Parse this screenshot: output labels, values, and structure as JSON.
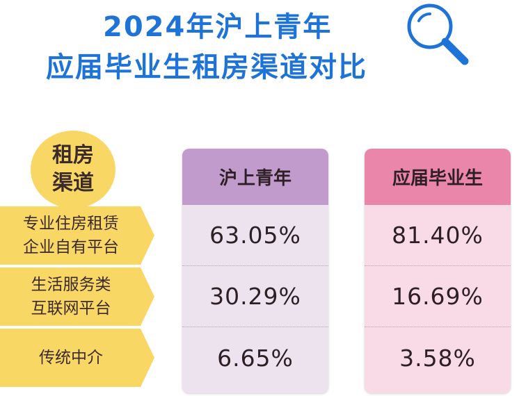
{
  "title": {
    "line1": "2024年沪上青年",
    "line2": "应届毕业生租房渠道对比"
  },
  "colors": {
    "title": "#1e73d8",
    "label_bg": "#f9d765",
    "series1_header": "#c09bcc",
    "series1_body": "#ece3ee",
    "series2_header": "#e986aa",
    "series2_body": "#f8dbe6"
  },
  "icons": [
    "magnifier-icon"
  ],
  "chart_data": {
    "type": "table",
    "title": "2024年沪上青年应届毕业生租房渠道对比",
    "row_header": [
      "租房",
      "渠道"
    ],
    "categories": [
      [
        "专业住房租赁",
        "企业自有平台"
      ],
      [
        "生活服务类",
        "互联网平台"
      ],
      [
        "传统中介"
      ]
    ],
    "series": [
      {
        "name": "沪上青年",
        "values": [
          "63.05%",
          "30.29%",
          "6.65%"
        ]
      },
      {
        "name": "应届毕业生",
        "values": [
          "81.40%",
          "16.69%",
          "3.58%"
        ]
      }
    ]
  }
}
